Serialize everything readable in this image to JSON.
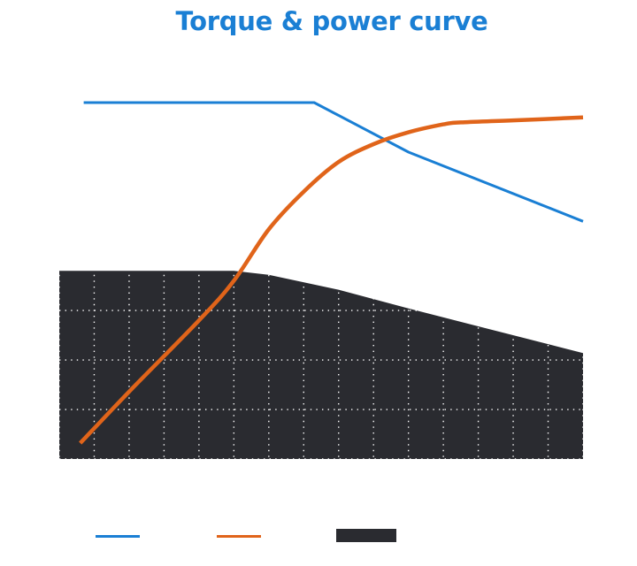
{
  "chart_data": {
    "type": "line",
    "title": "Torque & power curve",
    "xlabel": "",
    "ylabel": "",
    "x": [
      0,
      1,
      2,
      3,
      4,
      5,
      6,
      7,
      8,
      9,
      10,
      11,
      12,
      13,
      14,
      15
    ],
    "xlim": [
      0,
      15
    ],
    "ylim": [
      0,
      410
    ],
    "grid": true,
    "series": [
      {
        "type": "line",
        "color": "#1a7fd4",
        "x": [
          0.7,
          4,
          7.3,
          10,
          15
        ],
        "values": [
          360,
          360,
          360,
          310,
          240
        ]
      },
      {
        "type": "line",
        "color": "#e0641a",
        "x": [
          0.6,
          2,
          4,
          5,
          6,
          7,
          8,
          9,
          10,
          11,
          11.5,
          13,
          15
        ],
        "values": [
          16,
          68,
          140,
          180,
          232,
          270,
          300,
          318,
          330,
          338,
          340,
          342,
          345
        ]
      },
      {
        "type": "area",
        "color": "#2a2b30",
        "x": [
          0,
          5,
          6,
          8,
          10,
          12,
          14,
          15
        ],
        "values": [
          190,
          190,
          186,
          171,
          152,
          134,
          116,
          107
        ]
      }
    ],
    "legend": {
      "position": "bottom",
      "items": [
        {
          "color": "#1a7fd4",
          "kind": "line"
        },
        {
          "color": "#e0641a",
          "kind": "line"
        },
        {
          "color": "#2a2b30",
          "kind": "area"
        }
      ]
    },
    "colors": {
      "title": "#1a7fd4",
      "grid": "#ffffff",
      "background": "#ffffff"
    }
  }
}
